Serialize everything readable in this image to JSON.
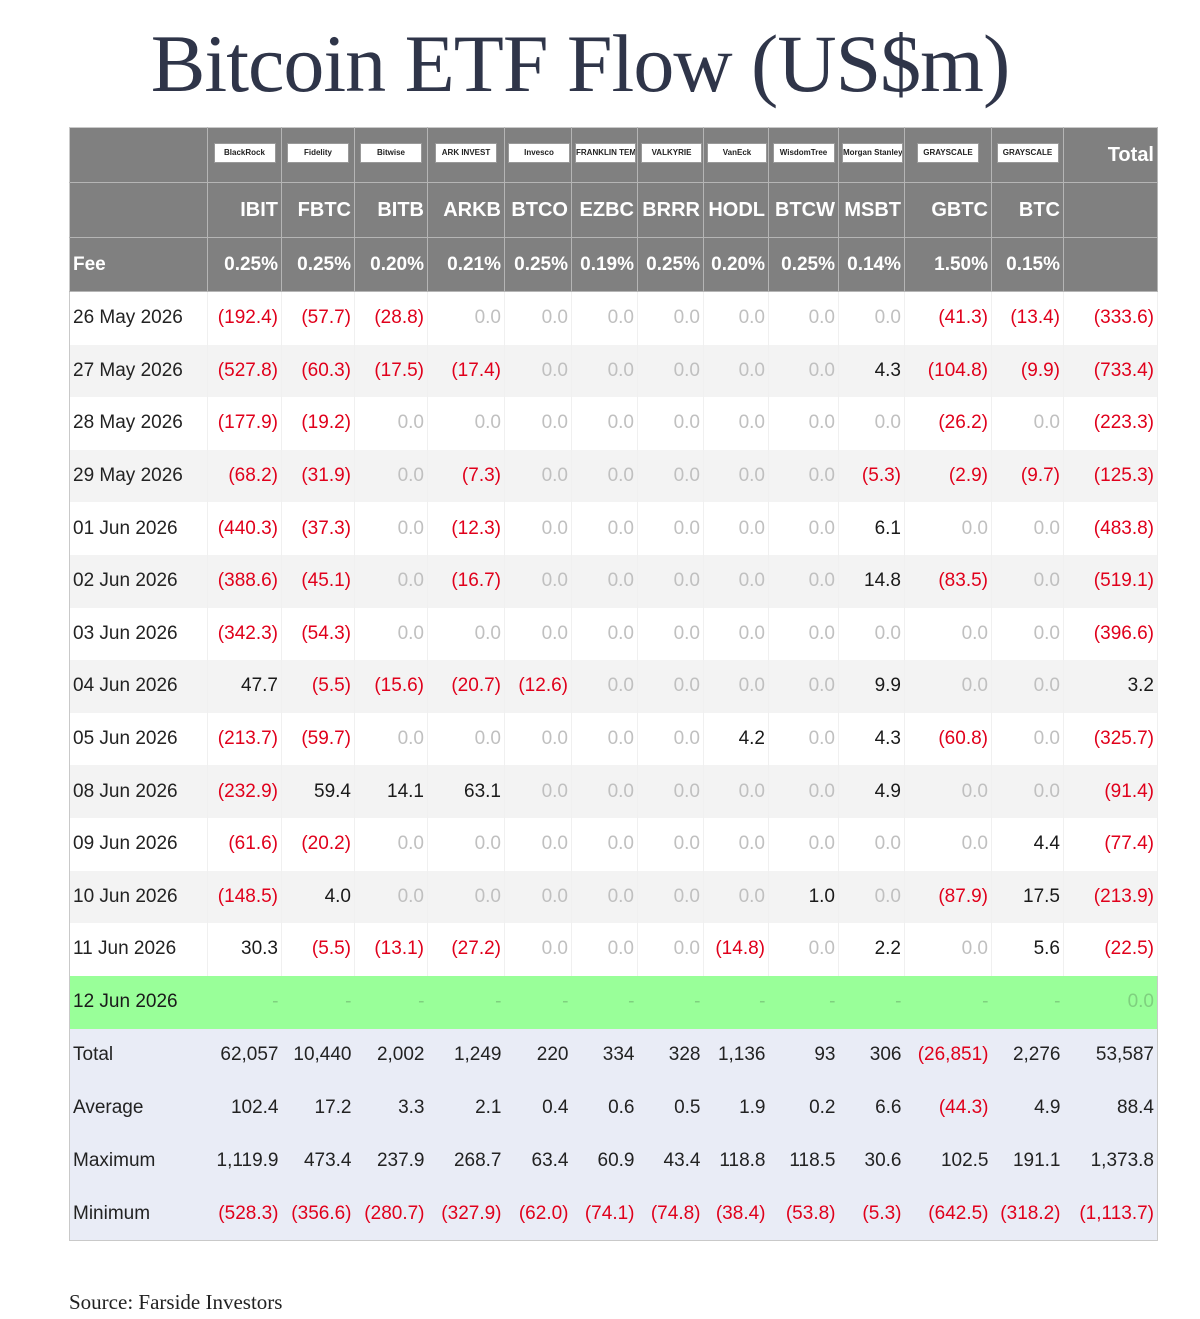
{
  "title": "Bitcoin ETF Flow (US$m)",
  "source": "Source: Farside Investors",
  "colors": {
    "header_bg": "#808080",
    "negative": "#e0001b",
    "zero": "#c0c0c0",
    "today_bg": "#99ff99",
    "stats_bg": "#e9ecf6"
  },
  "funds": [
    {
      "logo": "BlackRock",
      "ticker": "IBIT",
      "fee": "0.25%"
    },
    {
      "logo": "Fidelity",
      "ticker": "FBTC",
      "fee": "0.25%"
    },
    {
      "logo": "Bitwise",
      "ticker": "BITB",
      "fee": "0.20%"
    },
    {
      "logo": "ARK INVEST",
      "ticker": "ARKB",
      "fee": "0.21%"
    },
    {
      "logo": "Invesco",
      "ticker": "BTCO",
      "fee": "0.25%"
    },
    {
      "logo": "FRANKLIN TEMPLETON",
      "ticker": "EZBC",
      "fee": "0.19%"
    },
    {
      "logo": "VALKYRIE",
      "ticker": "BRRR",
      "fee": "0.25%"
    },
    {
      "logo": "VanEck",
      "ticker": "HODL",
      "fee": "0.20%"
    },
    {
      "logo": "WisdomTree",
      "ticker": "BTCW",
      "fee": "0.25%"
    },
    {
      "logo": "Morgan Stanley",
      "ticker": "MSBT",
      "fee": "0.14%"
    },
    {
      "logo": "GRAYSCALE",
      "ticker": "GBTC",
      "fee": "1.50%"
    },
    {
      "logo": "GRAYSCALE",
      "ticker": "BTC",
      "fee": "0.15%"
    }
  ],
  "total_header": "Total",
  "fee_label": "Fee",
  "rows": [
    {
      "date": "26 May 2026",
      "values": [
        "(192.4)",
        "(57.7)",
        "(28.8)",
        "0.0",
        "0.0",
        "0.0",
        "0.0",
        "0.0",
        "0.0",
        "0.0",
        "(41.3)",
        "(13.4)",
        "(333.6)"
      ]
    },
    {
      "date": "27 May 2026",
      "values": [
        "(527.8)",
        "(60.3)",
        "(17.5)",
        "(17.4)",
        "0.0",
        "0.0",
        "0.0",
        "0.0",
        "0.0",
        "4.3",
        "(104.8)",
        "(9.9)",
        "(733.4)"
      ]
    },
    {
      "date": "28 May 2026",
      "values": [
        "(177.9)",
        "(19.2)",
        "0.0",
        "0.0",
        "0.0",
        "0.0",
        "0.0",
        "0.0",
        "0.0",
        "0.0",
        "(26.2)",
        "0.0",
        "(223.3)"
      ]
    },
    {
      "date": "29 May 2026",
      "values": [
        "(68.2)",
        "(31.9)",
        "0.0",
        "(7.3)",
        "0.0",
        "0.0",
        "0.0",
        "0.0",
        "0.0",
        "(5.3)",
        "(2.9)",
        "(9.7)",
        "(125.3)"
      ]
    },
    {
      "date": "01 Jun 2026",
      "values": [
        "(440.3)",
        "(37.3)",
        "0.0",
        "(12.3)",
        "0.0",
        "0.0",
        "0.0",
        "0.0",
        "0.0",
        "6.1",
        "0.0",
        "0.0",
        "(483.8)"
      ]
    },
    {
      "date": "02 Jun 2026",
      "values": [
        "(388.6)",
        "(45.1)",
        "0.0",
        "(16.7)",
        "0.0",
        "0.0",
        "0.0",
        "0.0",
        "0.0",
        "14.8",
        "(83.5)",
        "0.0",
        "(519.1)"
      ]
    },
    {
      "date": "03 Jun 2026",
      "values": [
        "(342.3)",
        "(54.3)",
        "0.0",
        "0.0",
        "0.0",
        "0.0",
        "0.0",
        "0.0",
        "0.0",
        "0.0",
        "0.0",
        "0.0",
        "(396.6)"
      ]
    },
    {
      "date": "04 Jun 2026",
      "values": [
        "47.7",
        "(5.5)",
        "(15.6)",
        "(20.7)",
        "(12.6)",
        "0.0",
        "0.0",
        "0.0",
        "0.0",
        "9.9",
        "0.0",
        "0.0",
        "3.2"
      ]
    },
    {
      "date": "05 Jun 2026",
      "values": [
        "(213.7)",
        "(59.7)",
        "0.0",
        "0.0",
        "0.0",
        "0.0",
        "0.0",
        "4.2",
        "0.0",
        "4.3",
        "(60.8)",
        "0.0",
        "(325.7)"
      ]
    },
    {
      "date": "08 Jun 2026",
      "values": [
        "(232.9)",
        "59.4",
        "14.1",
        "63.1",
        "0.0",
        "0.0",
        "0.0",
        "0.0",
        "0.0",
        "4.9",
        "0.0",
        "0.0",
        "(91.4)"
      ]
    },
    {
      "date": "09 Jun 2026",
      "values": [
        "(61.6)",
        "(20.2)",
        "0.0",
        "0.0",
        "0.0",
        "0.0",
        "0.0",
        "0.0",
        "0.0",
        "0.0",
        "0.0",
        "4.4",
        "(77.4)"
      ]
    },
    {
      "date": "10 Jun 2026",
      "values": [
        "(148.5)",
        "4.0",
        "0.0",
        "0.0",
        "0.0",
        "0.0",
        "0.0",
        "0.0",
        "1.0",
        "0.0",
        "(87.9)",
        "17.5",
        "(213.9)"
      ]
    },
    {
      "date": "11 Jun 2026",
      "values": [
        "30.3",
        "(5.5)",
        "(13.1)",
        "(27.2)",
        "0.0",
        "0.0",
        "0.0",
        "(14.8)",
        "0.0",
        "2.2",
        "0.0",
        "5.6",
        "(22.5)"
      ]
    }
  ],
  "today": {
    "date": "12 Jun 2026",
    "values": [
      "-",
      "-",
      "-",
      "-",
      "-",
      "-",
      "-",
      "-",
      "-",
      "-",
      "-",
      "-",
      "0.0"
    ]
  },
  "stats": [
    {
      "label": "Total",
      "values": [
        "62,057",
        "10,440",
        "2,002",
        "1,249",
        "220",
        "334",
        "328",
        "1,136",
        "93",
        "306",
        "(26,851)",
        "2,276",
        "53,587"
      ]
    },
    {
      "label": "Average",
      "values": [
        "102.4",
        "17.2",
        "3.3",
        "2.1",
        "0.4",
        "0.6",
        "0.5",
        "1.9",
        "0.2",
        "6.6",
        "(44.3)",
        "4.9",
        "88.4"
      ]
    },
    {
      "label": "Maximum",
      "values": [
        "1,119.9",
        "473.4",
        "237.9",
        "268.7",
        "63.4",
        "60.9",
        "43.4",
        "118.8",
        "118.5",
        "30.6",
        "102.5",
        "191.1",
        "1,373.8"
      ]
    },
    {
      "label": "Minimum",
      "values": [
        "(528.3)",
        "(356.6)",
        "(280.7)",
        "(327.9)",
        "(62.0)",
        "(74.1)",
        "(74.8)",
        "(38.4)",
        "(53.8)",
        "(5.3)",
        "(642.5)",
        "(318.2)",
        "(1,113.7)"
      ]
    }
  ]
}
